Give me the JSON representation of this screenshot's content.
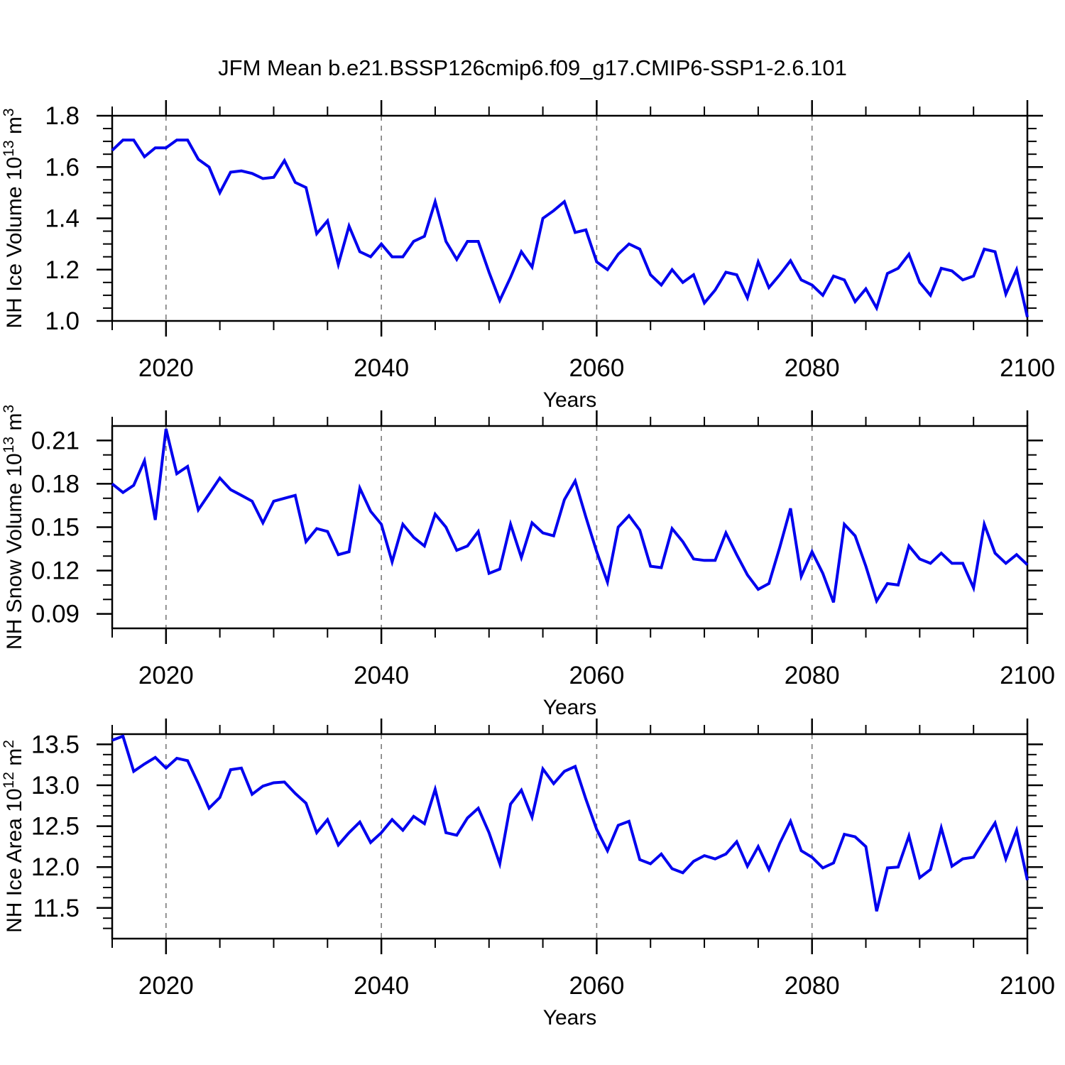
{
  "title": "JFM Mean b.e21.BSSP126cmip6.f09_g17.CMIP6-SSP1-2.6.101",
  "background": "#ffffff",
  "line_color": "#0000EE",
  "line_width": 4,
  "grid_color": "#7a7a7a",
  "years": [
    2015,
    2016,
    2017,
    2018,
    2019,
    2020,
    2021,
    2022,
    2023,
    2024,
    2025,
    2026,
    2027,
    2028,
    2029,
    2030,
    2031,
    2032,
    2033,
    2034,
    2035,
    2036,
    2037,
    2038,
    2039,
    2040,
    2041,
    2042,
    2043,
    2044,
    2045,
    2046,
    2047,
    2048,
    2049,
    2050,
    2051,
    2052,
    2053,
    2054,
    2055,
    2056,
    2057,
    2058,
    2059,
    2060,
    2061,
    2062,
    2063,
    2064,
    2065,
    2066,
    2067,
    2068,
    2069,
    2070,
    2071,
    2072,
    2073,
    2074,
    2075,
    2076,
    2077,
    2078,
    2079,
    2080,
    2081,
    2082,
    2083,
    2084,
    2085,
    2086,
    2087,
    2088,
    2089,
    2090,
    2091,
    2092,
    2093,
    2094,
    2095,
    2096,
    2097,
    2098,
    2099,
    2100
  ],
  "chart_data": [
    {
      "type": "line",
      "panel": 1,
      "ylabel": "NH Ice Volume 10^13 m^3",
      "ylabel_segments": [
        {
          "t": "NH Ice Volume 10"
        },
        {
          "t": "13",
          "sup": true
        },
        {
          "t": " m"
        },
        {
          "t": "3",
          "sup": true
        }
      ],
      "xlabel": "Years",
      "xlim": [
        2015,
        2100
      ],
      "x_ticks": [
        2020,
        2040,
        2060,
        2080,
        2100
      ],
      "x_tick_labels": [
        "2020",
        "2040",
        "2060",
        "2080",
        "2100"
      ],
      "x_minor_step": 5,
      "grid_x_dashed": [
        2020,
        2040,
        2060,
        2080
      ],
      "ylim": [
        1.0,
        1.8
      ],
      "y_ticks": [
        1.0,
        1.2,
        1.4,
        1.6,
        1.8
      ],
      "y_tick_labels": [
        "1.0",
        "1.2",
        "1.4",
        "1.6",
        "1.8"
      ],
      "y_minor_step": 0.05,
      "values": [
        1.665,
        1.705,
        1.705,
        1.64,
        1.675,
        1.675,
        1.705,
        1.705,
        1.63,
        1.6,
        1.5,
        1.58,
        1.585,
        1.575,
        1.555,
        1.56,
        1.625,
        1.54,
        1.52,
        1.34,
        1.39,
        1.22,
        1.37,
        1.27,
        1.25,
        1.3,
        1.25,
        1.25,
        1.31,
        1.33,
        1.465,
        1.31,
        1.24,
        1.31,
        1.31,
        1.19,
        1.08,
        1.17,
        1.27,
        1.21,
        1.4,
        1.43,
        1.465,
        1.345,
        1.355,
        1.23,
        1.2,
        1.26,
        1.3,
        1.28,
        1.18,
        1.14,
        1.2,
        1.15,
        1.18,
        1.07,
        1.12,
        1.19,
        1.18,
        1.09,
        1.23,
        1.13,
        1.18,
        1.235,
        1.16,
        1.14,
        1.1,
        1.175,
        1.16,
        1.075,
        1.125,
        1.05,
        1.185,
        1.205,
        1.26,
        1.15,
        1.1,
        1.205,
        1.195,
        1.16,
        1.175,
        1.28,
        1.27,
        1.105,
        1.2,
        1.015
      ]
    },
    {
      "type": "line",
      "panel": 2,
      "ylabel": "NH Snow Volume 10^13 m^3",
      "ylabel_segments": [
        {
          "t": "NH Snow Volume 10"
        },
        {
          "t": "13",
          "sup": true
        },
        {
          "t": " m"
        },
        {
          "t": "3",
          "sup": true
        }
      ],
      "xlabel": "Years",
      "xlim": [
        2015,
        2100
      ],
      "x_ticks": [
        2020,
        2040,
        2060,
        2080,
        2100
      ],
      "x_tick_labels": [
        "2020",
        "2040",
        "2060",
        "2080",
        "2100"
      ],
      "x_minor_step": 5,
      "grid_x_dashed": [
        2020,
        2040,
        2060,
        2080
      ],
      "ylim": [
        0.08,
        0.22
      ],
      "y_ticks": [
        0.09,
        0.12,
        0.15,
        0.18,
        0.21
      ],
      "y_tick_labels": [
        "0.09",
        "0.12",
        "0.15",
        "0.18",
        "0.21"
      ],
      "y_minor_step": 0.01,
      "values": [
        0.18,
        0.174,
        0.179,
        0.196,
        0.155,
        0.218,
        0.187,
        0.192,
        0.162,
        0.173,
        0.184,
        0.176,
        0.172,
        0.168,
        0.153,
        0.168,
        0.17,
        0.172,
        0.14,
        0.149,
        0.147,
        0.131,
        0.133,
        0.177,
        0.161,
        0.152,
        0.126,
        0.152,
        0.143,
        0.137,
        0.159,
        0.15,
        0.134,
        0.137,
        0.147,
        0.118,
        0.121,
        0.152,
        0.129,
        0.153,
        0.146,
        0.144,
        0.169,
        0.182,
        0.157,
        0.133,
        0.112,
        0.15,
        0.158,
        0.148,
        0.123,
        0.122,
        0.149,
        0.14,
        0.128,
        0.127,
        0.127,
        0.146,
        0.131,
        0.117,
        0.107,
        0.111,
        0.136,
        0.163,
        0.116,
        0.133,
        0.118,
        0.098,
        0.152,
        0.144,
        0.123,
        0.099,
        0.111,
        0.11,
        0.137,
        0.128,
        0.125,
        0.132,
        0.125,
        0.125,
        0.108,
        0.152,
        0.132,
        0.125,
        0.131,
        0.124
      ]
    },
    {
      "type": "line",
      "panel": 3,
      "ylabel": "NH Ice Area 10^12 m^2",
      "ylabel_segments": [
        {
          "t": "NH Ice Area 10"
        },
        {
          "t": "12",
          "sup": true
        },
        {
          "t": " m"
        },
        {
          "t": "2",
          "sup": true
        }
      ],
      "xlabel": "Years",
      "xlim": [
        2015,
        2100
      ],
      "x_ticks": [
        2020,
        2040,
        2060,
        2080,
        2100
      ],
      "x_tick_labels": [
        "2020",
        "2040",
        "2060",
        "2080",
        "2100"
      ],
      "x_minor_step": 5,
      "grid_x_dashed": [
        2020,
        2040,
        2060,
        2080
      ],
      "ylim": [
        11.125,
        13.625
      ],
      "y_ticks": [
        11.5,
        12.0,
        12.5,
        13.0,
        13.5
      ],
      "y_tick_labels": [
        "11.5",
        "12.0",
        "12.5",
        "13.0",
        "13.5"
      ],
      "y_minor_step": 0.125,
      "values": [
        13.55,
        13.6,
        13.17,
        13.26,
        13.34,
        13.21,
        13.33,
        13.3,
        13.02,
        12.72,
        12.85,
        13.19,
        13.21,
        12.89,
        12.99,
        13.03,
        13.04,
        12.9,
        12.78,
        12.42,
        12.58,
        12.27,
        12.42,
        12.55,
        12.3,
        12.42,
        12.58,
        12.45,
        12.62,
        12.53,
        12.95,
        12.42,
        12.39,
        12.6,
        12.72,
        12.42,
        12.04,
        12.77,
        12.94,
        12.61,
        13.2,
        13.02,
        13.17,
        13.23,
        12.83,
        12.46,
        12.2,
        12.51,
        12.56,
        12.09,
        12.04,
        12.16,
        11.98,
        11.93,
        12.07,
        12.14,
        12.1,
        12.16,
        12.31,
        12.01,
        12.25,
        11.97,
        12.29,
        12.56,
        12.2,
        12.12,
        11.99,
        12.05,
        12.4,
        12.37,
        12.25,
        11.46,
        11.99,
        12.0,
        12.38,
        11.87,
        11.97,
        12.48,
        12.01,
        12.1,
        12.12,
        12.33,
        12.54,
        12.1,
        12.45,
        11.84
      ]
    }
  ]
}
